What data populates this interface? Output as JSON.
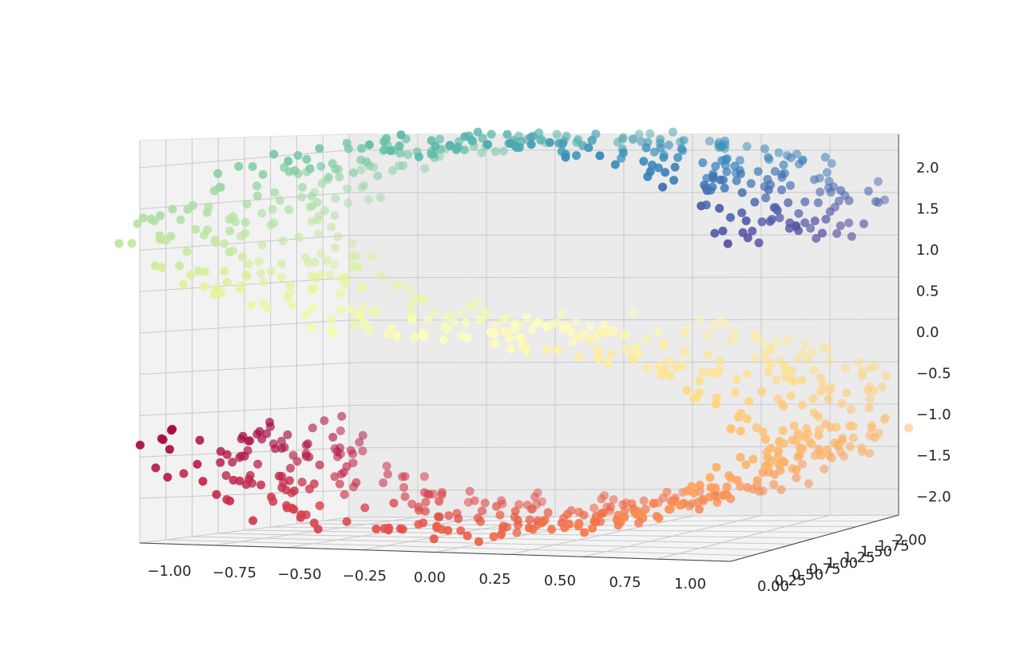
{
  "chart_data": {
    "type": "scatter",
    "projection": "3d",
    "title": "",
    "xlabel": "",
    "ylabel": "",
    "zlabel": "",
    "grid": true,
    "colormap": "Spectral",
    "x_ticks": [
      "−1.00",
      "−0.75",
      "−0.50",
      "−0.25",
      "0.00",
      "0.25",
      "0.50",
      "0.75",
      "1.00"
    ],
    "y_ticks": [
      "0.00",
      "0.25",
      "0.50",
      "0.75",
      "1.00",
      "1.25",
      "1.50",
      "1.75",
      "2.00"
    ],
    "z_ticks": [
      "2.0",
      "1.5",
      "1.0",
      "0.5",
      "0.0",
      "−0.5",
      "−1.0",
      "−1.5",
      "−2.0"
    ],
    "xlim": [
      -1.0,
      1.0
    ],
    "ylim": [
      0.0,
      2.0
    ],
    "zlim": [
      -2.0,
      2.0
    ],
    "points": {
      "count": 1000,
      "x_range": [
        -1.0,
        1.0
      ],
      "y_range": [
        0.0,
        2.0
      ],
      "z_range": [
        -2.0,
        2.0
      ],
      "colors": [
        "#5e4fa2",
        "#3288bd",
        "#66c2a5",
        "#abdda4",
        "#e6f598",
        "#ffffbf",
        "#fee08b",
        "#fdae61",
        "#f46d43",
        "#d53e4f",
        "#9e0142"
      ]
    }
  }
}
